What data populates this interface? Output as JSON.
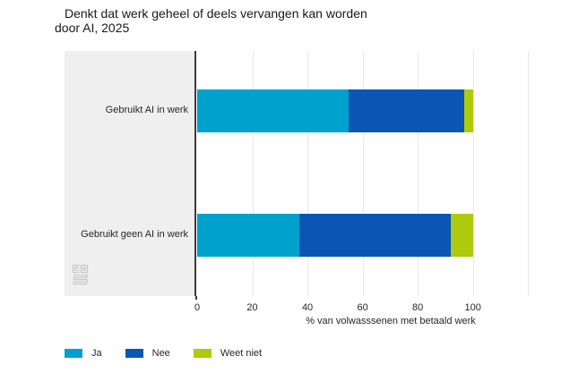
{
  "title": {
    "line1": "Denkt dat werk geheel of deels vervangen kan worden",
    "line2": "door AI, 2025"
  },
  "chart_data": {
    "type": "bar",
    "orientation": "horizontal",
    "stacked": true,
    "categories": [
      "Gebruikt AI in werk",
      "Gebruikt geen AI in werk"
    ],
    "series": [
      {
        "name": "Ja",
        "color": "#00a1cd",
        "values": [
          55,
          37
        ]
      },
      {
        "name": "Nee",
        "color": "#0a56b4",
        "values": [
          42,
          55
        ]
      },
      {
        "name": "Weet niet",
        "color": "#aeca0d",
        "values": [
          3,
          8
        ]
      }
    ],
    "xlabel": "% van volwasssenen met betaald werk",
    "xticks": [
      {
        "value": 0,
        "label": "0"
      },
      {
        "value": 20,
        "label": "20"
      },
      {
        "value": 40,
        "label": "40"
      },
      {
        "value": 60,
        "label": "60"
      },
      {
        "value": 80,
        "label": "80"
      },
      {
        "value": 100,
        "label": "100"
      }
    ],
    "xmax": 130,
    "gridline_step": 20,
    "grid": true,
    "legend_position": "bottom-left",
    "legend": [
      "Ja",
      "Nee",
      "Weet niet"
    ]
  },
  "icons": {
    "logo": "cbs-logo"
  },
  "colors": {
    "accent_cyan": "#00a1cd",
    "accent_blue": "#0a56b4",
    "accent_green": "#aeca0d",
    "panel_bg": "#efefef",
    "gridline": "#e8e8e8",
    "axis_line": "#3a3a3a",
    "text": "#262626"
  }
}
